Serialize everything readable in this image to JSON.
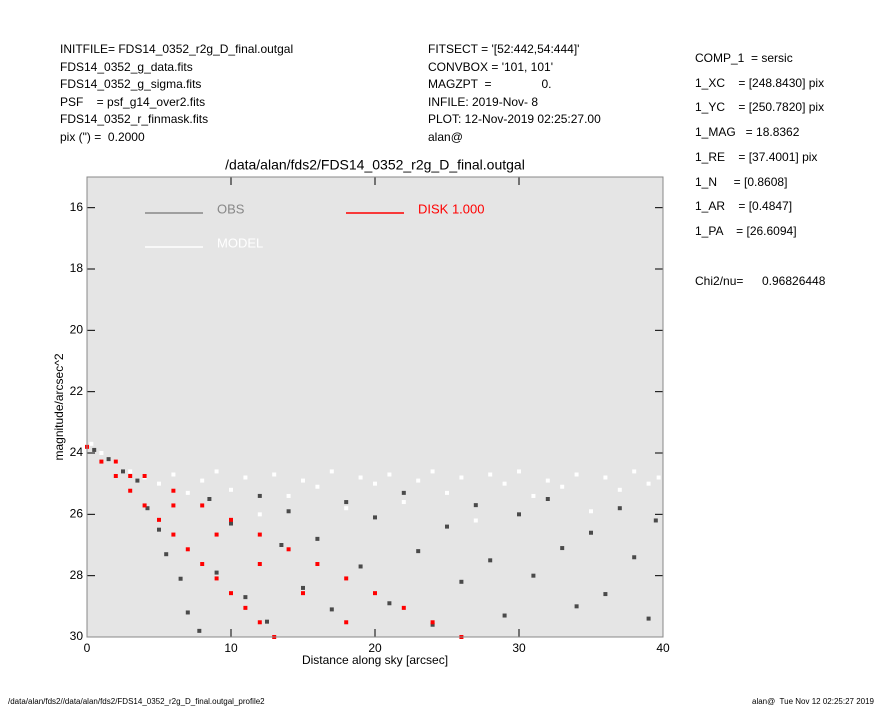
{
  "header": {
    "left": [
      "INITFILE= FDS14_0352_r2g_D_final.outgal",
      "FDS14_0352_g_data.fits",
      "FDS14_0352_g_sigma.fits",
      "PSF    = psf_g14_over2.fits",
      "FDS14_0352_r_finmask.fits",
      "pix (\") =  0.2000"
    ],
    "middle": [
      "FITSECT = '[52:442,54:444]'",
      "CONVBOX = '101, 101'",
      "MAGZPT  =               0.",
      "INFILE: 2019-Nov- 8",
      "PLOT: 12-Nov-2019 02:25:27.00",
      "alan@"
    ],
    "right": [
      "COMP_1  = sersic",
      "1_XC    = [248.8430] pix",
      "1_YC    = [250.7820] pix",
      "1_MAG   = 18.8362",
      "1_RE    = [37.4001] pix",
      "1_N     = [0.8608]",
      "1_AR    = [0.4847]",
      "1_PA    = [26.6094]"
    ],
    "chi2_label": "Chi2/nu=",
    "chi2_value": "0.96826448"
  },
  "footer": {
    "left": "/data/alan/fds2//data/alan/fds2/FDS14_0352_r2g_D_final.outgal_profile2",
    "right": "alan@  Tue Nov 12 02:25:27 2019"
  },
  "chart_data": {
    "type": "scatter",
    "title": "/data/alan/fds2/FDS14_0352_r2g_D_final.outgal",
    "x_label": "Distance along sky [arcsec]",
    "y_label": "magnitude/arcsec^2",
    "xlim": [
      0,
      40
    ],
    "xticks": [
      0,
      10,
      20,
      30,
      40
    ],
    "ylim": [
      30,
      15
    ],
    "yticks": [
      16,
      18,
      20,
      22,
      24,
      26,
      28,
      30
    ],
    "background": "#e5e5e5",
    "series": [
      {
        "name": "OBS",
        "color": "#4a4a4a",
        "x": [
          0.5,
          1.5,
          2.5,
          3.5,
          4.2,
          5,
          5.5,
          6.5,
          7,
          7.8,
          8.5,
          9,
          10,
          11,
          12,
          12.5,
          13.5,
          14,
          15,
          16,
          17,
          18,
          19,
          20,
          21,
          22,
          23,
          24,
          25,
          26,
          27,
          28,
          29,
          30,
          31,
          32,
          33,
          34,
          35,
          36,
          37,
          38,
          39,
          39.5
        ],
        "values": [
          23.9,
          24.2,
          24.6,
          24.9,
          25.8,
          26.5,
          27.3,
          28.1,
          29.2,
          29.8,
          25.5,
          27.9,
          26.3,
          28.7,
          25.4,
          29.5,
          27.0,
          25.9,
          28.4,
          26.8,
          29.1,
          25.6,
          27.7,
          26.1,
          28.9,
          25.3,
          27.2,
          29.6,
          26.4,
          28.2,
          25.7,
          27.5,
          29.3,
          26.0,
          28.0,
          25.5,
          27.1,
          29.0,
          26.6,
          28.6,
          25.8,
          27.4,
          29.4,
          26.2
        ]
      },
      {
        "name": "MODEL",
        "color": "#ffffff",
        "x": [
          0.3,
          1,
          2,
          3,
          4,
          5,
          6,
          7,
          8,
          9,
          10,
          11,
          12,
          13,
          14,
          15,
          16,
          17,
          18,
          19,
          20,
          21,
          22,
          23,
          24,
          25,
          26,
          27,
          28,
          29,
          30,
          31,
          32,
          33,
          34,
          35,
          36,
          37,
          38,
          39,
          39.7
        ],
        "values": [
          23.7,
          24.0,
          24.3,
          24.6,
          24.8,
          25.0,
          24.7,
          25.3,
          24.9,
          24.6,
          25.2,
          24.8,
          26.0,
          24.7,
          25.4,
          24.9,
          25.1,
          24.6,
          25.8,
          24.8,
          25.0,
          24.7,
          25.6,
          24.9,
          24.6,
          25.3,
          24.8,
          26.2,
          24.7,
          25.0,
          24.6,
          25.4,
          24.9,
          25.1,
          24.7,
          25.9,
          24.8,
          25.2,
          24.6,
          25.0,
          24.8
        ]
      },
      {
        "name": "DISK  1.000",
        "color": "#ff0000",
        "x": [
          0,
          1,
          2,
          3,
          4,
          5,
          6,
          7,
          8,
          9,
          10,
          11,
          12,
          13,
          2,
          4,
          6,
          8,
          10,
          12,
          14,
          16,
          18,
          20,
          22,
          24,
          26,
          3,
          6,
          9,
          12,
          15,
          18
        ],
        "values": [
          23.8,
          24.28,
          24.75,
          25.23,
          25.71,
          26.18,
          26.66,
          27.14,
          27.62,
          28.09,
          28.57,
          29.05,
          29.52,
          30.0,
          24.28,
          24.75,
          25.23,
          25.71,
          26.18,
          26.66,
          27.14,
          27.62,
          28.09,
          28.57,
          29.05,
          29.52,
          30.0,
          24.75,
          25.71,
          26.66,
          27.62,
          28.57,
          29.52
        ]
      }
    ]
  }
}
